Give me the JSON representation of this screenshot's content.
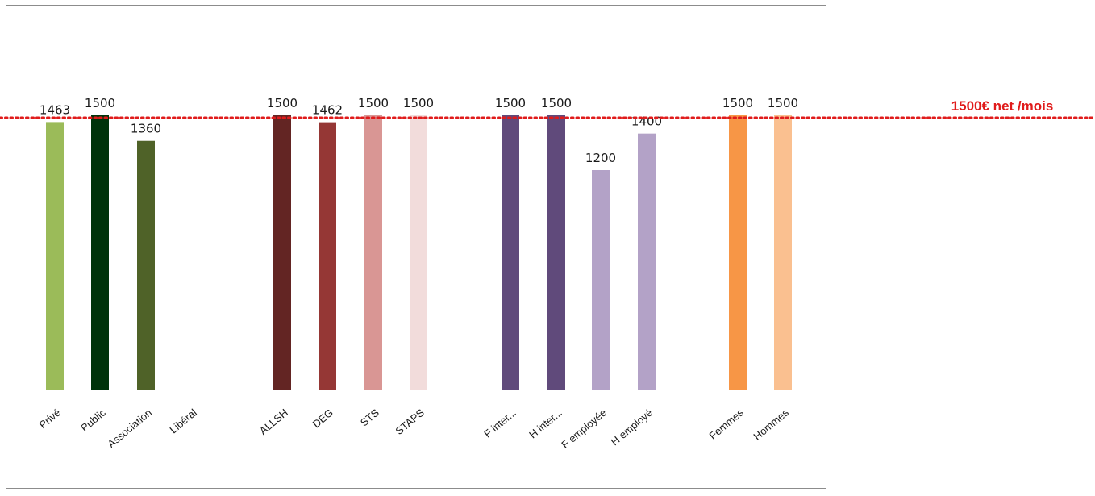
{
  "chart_data": {
    "type": "bar",
    "categories": [
      "Privé",
      "Public",
      "Association",
      "Libéral",
      "ALLSH",
      "DEG",
      "STS",
      "STAPS",
      "F inter...",
      "H inter...",
      "F employée",
      "H employé",
      "Femmes",
      "Hommes"
    ],
    "values": [
      1463,
      1500,
      1360,
      null,
      1500,
      1462,
      1500,
      1500,
      1500,
      1500,
      1200,
      1400,
      1500,
      1500
    ],
    "data_labels": [
      "1463",
      "1500",
      "1360",
      "",
      "1500",
      "1462",
      "1500",
      "1500",
      "1500",
      "1500",
      "1200",
      "1400",
      "1500",
      "1500"
    ],
    "colors": [
      "#9bbb59",
      "#00330a",
      "#4f6228",
      "#ffffff",
      "#632523",
      "#953735",
      "#d99694",
      "#f2dcdb",
      "#604a7b",
      "#604a7b",
      "#b3a2c7",
      "#b3a2c7",
      "#f79646",
      "#fac090"
    ],
    "ylim": [
      0,
      1500
    ],
    "grid": false,
    "reference_line": {
      "value": 1500,
      "label": "1500€ net /mois",
      "color": "#e01b1b"
    }
  }
}
